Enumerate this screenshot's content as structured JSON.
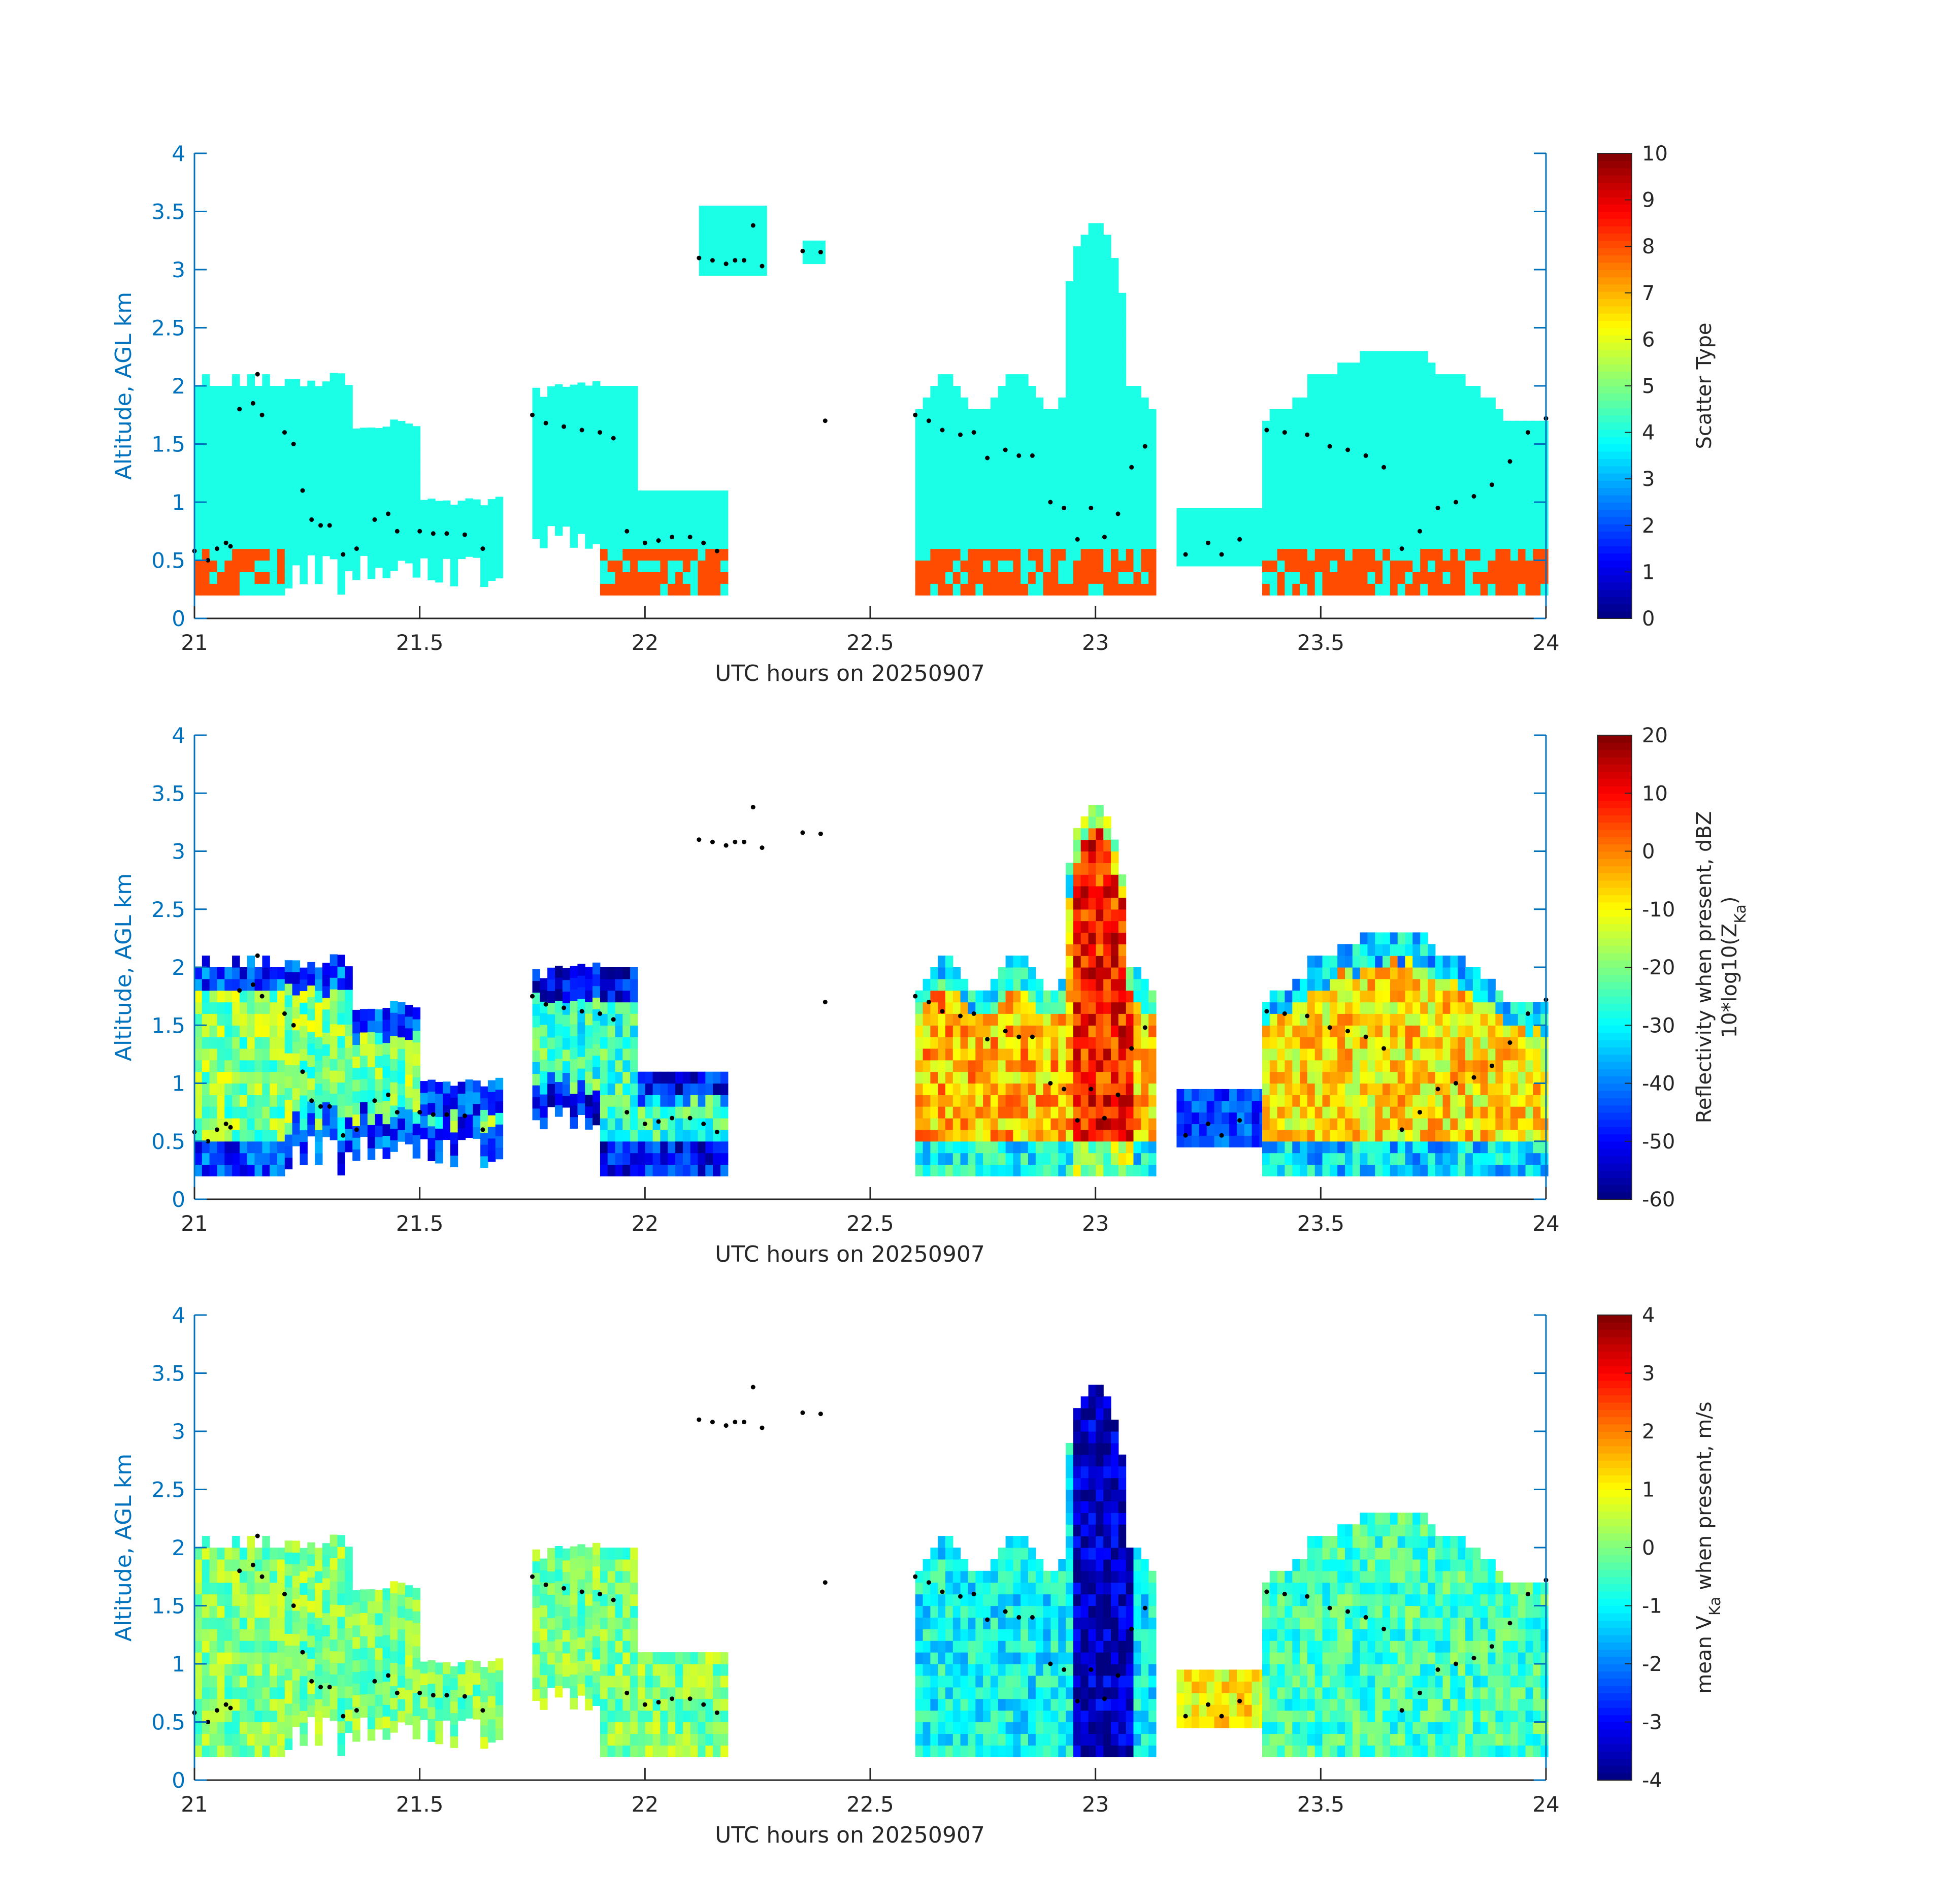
{
  "figure": {
    "panels": [
      {
        "id": "scatter-type",
        "ylabel": "Altitude, AGL km",
        "xlabel": "UTC hours on 20250907",
        "colorbar": {
          "label_line1": "Scatter Type",
          "label_line2": "",
          "min": 0,
          "max": 10,
          "ticks": [
            "0",
            "1",
            "2",
            "3",
            "4",
            "5",
            "6",
            "7",
            "8",
            "9",
            "10"
          ]
        }
      },
      {
        "id": "reflectivity",
        "ylabel": "Altitude, AGL km",
        "xlabel": "UTC hours on 20250907",
        "colorbar": {
          "label_line1": "Reflectivity when present, dBZ",
          "label_line2": "10*log10(Z",
          "label_line2_sub": "Ka",
          "label_line2_end": ")",
          "min": -60,
          "max": 20,
          "ticks": [
            "-60",
            "-50",
            "-40",
            "-30",
            "-20",
            "-10",
            "0",
            "10",
            "20"
          ]
        }
      },
      {
        "id": "mean-velocity",
        "ylabel": "Altitude, AGL km",
        "xlabel": "UTC hours on 20250907",
        "colorbar": {
          "label_line1": "mean V",
          "label_line1_sub": "Ka",
          "label_line1_end": " when present, m/s",
          "min": -4,
          "max": 4,
          "ticks": [
            "-4",
            "-3",
            "-2",
            "-1",
            "0",
            "1",
            "2",
            "3",
            "4"
          ]
        }
      }
    ]
  },
  "chart_data": [
    {
      "type": "heatmap",
      "title": "",
      "xlabel": "UTC hours on 20250907",
      "ylabel": "Altitude, AGL km",
      "xlim": [
        21,
        24
      ],
      "ylim": [
        0,
        4
      ],
      "xticks": [
        "21",
        "21.5",
        "22",
        "22.5",
        "23",
        "23.5",
        "24"
      ],
      "yticks": [
        "0",
        "0.5",
        "1",
        "1.5",
        "2",
        "2.5",
        "3",
        "3.5",
        "4"
      ],
      "colorbar_label": "Scatter Type",
      "clim": [
        0,
        10
      ],
      "regions": [
        {
          "x": [
            21.0,
            21.67
          ],
          "y": [
            0.2,
            2.25
          ],
          "value": 4
        },
        {
          "x": [
            21.75,
            22.17
          ],
          "y": [
            0.2,
            1.95
          ],
          "value": 4
        },
        {
          "x": [
            22.12,
            22.26
          ],
          "y": [
            2.95,
            3.5
          ],
          "value": 4
        },
        {
          "x": [
            22.35,
            22.4
          ],
          "y": [
            3.05,
            3.25
          ],
          "value": 4
        },
        {
          "x": [
            22.6,
            23.13
          ],
          "y": [
            0.2,
            3.5
          ],
          "value": 4
        },
        {
          "x": [
            23.18,
            23.42
          ],
          "y": [
            0.45,
            0.95
          ],
          "value": 4
        },
        {
          "x": [
            23.37,
            24.0
          ],
          "y": [
            0.2,
            2.3
          ],
          "value": 4
        }
      ],
      "series": [
        {
          "name": "",
          "x": [
            21.0,
            21.03,
            21.05,
            21.07,
            21.08,
            21.1,
            21.13,
            21.14,
            21.15,
            21.2,
            21.22,
            21.24,
            21.26,
            21.28,
            21.3,
            21.33,
            21.36,
            21.4,
            21.43,
            21.45,
            21.5,
            21.53,
            21.56,
            21.6,
            21.64,
            21.75,
            21.78,
            21.82,
            21.86,
            21.9,
            21.93,
            21.96,
            22.0,
            22.03,
            22.06,
            22.1,
            22.13,
            22.16,
            22.12,
            22.15,
            22.18,
            22.2,
            22.22,
            22.24,
            22.26,
            22.35,
            22.39,
            22.4,
            22.6,
            22.63,
            22.66,
            22.7,
            22.73,
            22.76,
            22.8,
            22.83,
            22.86,
            22.9,
            22.93,
            22.96,
            22.99,
            23.02,
            23.05,
            23.08,
            23.11,
            23.2,
            23.25,
            23.28,
            23.32,
            23.38,
            23.42,
            23.47,
            23.52,
            23.56,
            23.6,
            23.64,
            23.68,
            23.72,
            23.76,
            23.8,
            23.84,
            23.88,
            23.92,
            23.96,
            24.0
          ],
          "y": [
            0.58,
            0.5,
            0.6,
            0.65,
            0.62,
            1.8,
            1.85,
            2.1,
            1.75,
            1.6,
            1.5,
            1.1,
            0.85,
            0.8,
            0.8,
            0.55,
            0.6,
            0.85,
            0.9,
            0.75,
            0.75,
            0.73,
            0.73,
            0.72,
            0.6,
            1.75,
            1.68,
            1.65,
            1.62,
            1.6,
            1.55,
            0.75,
            0.65,
            0.67,
            0.7,
            0.7,
            0.65,
            0.58,
            3.1,
            3.08,
            3.05,
            3.08,
            3.08,
            3.38,
            3.03,
            3.16,
            3.15,
            1.7,
            1.75,
            1.7,
            1.62,
            1.58,
            1.6,
            1.38,
            1.45,
            1.4,
            1.4,
            1.0,
            0.95,
            0.68,
            0.95,
            0.7,
            0.9,
            1.3,
            1.48,
            0.55,
            0.65,
            0.55,
            0.68,
            1.62,
            1.6,
            1.58,
            1.48,
            1.45,
            1.4,
            1.3,
            0.6,
            0.75,
            0.95,
            1.0,
            1.05,
            1.15,
            1.35,
            1.6,
            1.72
          ]
        }
      ]
    },
    {
      "type": "heatmap",
      "title": "",
      "xlabel": "UTC hours on 20250907",
      "ylabel": "Altitude, AGL km",
      "xlim": [
        21,
        24
      ],
      "ylim": [
        0,
        4
      ],
      "xticks": [
        "21",
        "21.5",
        "22",
        "22.5",
        "23",
        "23.5",
        "24"
      ],
      "yticks": [
        "0",
        "0.5",
        "1",
        "1.5",
        "2",
        "2.5",
        "3",
        "3.5",
        "4"
      ],
      "colorbar_label": "Reflectivity when present, dBZ 10*log10(ZKa)",
      "clim": [
        -60,
        20
      ],
      "regions": [
        {
          "x": [
            21.0,
            21.67
          ],
          "y": [
            0.2,
            2.05
          ],
          "value": -20
        },
        {
          "x": [
            21.75,
            22.17
          ],
          "y": [
            0.2,
            1.95
          ],
          "value": -25
        },
        {
          "x": [
            22.6,
            23.13
          ],
          "y": [
            0.2,
            3.5
          ],
          "value": -5
        },
        {
          "x": [
            22.95,
            23.08
          ],
          "y": [
            0.2,
            3.4
          ],
          "value": 8
        },
        {
          "x": [
            23.18,
            23.42
          ],
          "y": [
            0.45,
            1.0
          ],
          "value": -50
        },
        {
          "x": [
            23.37,
            24.0
          ],
          "y": [
            0.2,
            2.3
          ],
          "value": -8
        }
      ]
    },
    {
      "type": "heatmap",
      "title": "",
      "xlabel": "UTC hours on 20250907",
      "ylabel": "Altitude, AGL km",
      "xlim": [
        21,
        24
      ],
      "ylim": [
        0,
        4
      ],
      "xticks": [
        "21",
        "21.5",
        "22",
        "22.5",
        "23",
        "23.5",
        "24"
      ],
      "yticks": [
        "0",
        "0.5",
        "1",
        "1.5",
        "2",
        "2.5",
        "3",
        "3.5",
        "4"
      ],
      "colorbar_label": "mean VKa when present, m/s",
      "clim": [
        -4,
        4
      ],
      "regions": [
        {
          "x": [
            21.0,
            21.67
          ],
          "y": [
            0.2,
            2.05
          ],
          "value": 0
        },
        {
          "x": [
            21.75,
            22.17
          ],
          "y": [
            0.2,
            1.95
          ],
          "value": 0
        },
        {
          "x": [
            22.6,
            23.13
          ],
          "y": [
            0.2,
            3.5
          ],
          "value": -1
        },
        {
          "x": [
            22.95,
            23.08
          ],
          "y": [
            0.2,
            3.5
          ],
          "value": -3.5
        },
        {
          "x": [
            23.18,
            23.42
          ],
          "y": [
            0.45,
            0.95
          ],
          "value": 1
        },
        {
          "x": [
            23.37,
            24.0
          ],
          "y": [
            0.2,
            2.3
          ],
          "value": -0.5
        }
      ]
    }
  ]
}
